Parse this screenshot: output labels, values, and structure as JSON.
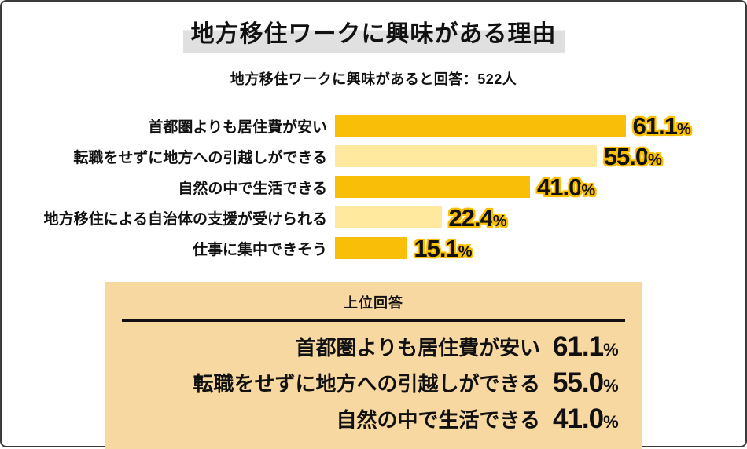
{
  "page": {
    "title": "地方移住ワークに興味がある理由",
    "subtitle": "地方移住ワークに興味があると回答：522人"
  },
  "chart_data": {
    "type": "bar",
    "orientation": "horizontal",
    "title": "地方移住ワークに興味がある理由",
    "subtitle": "地方移住ワークに興味があると回答：522人",
    "respondents": "522人",
    "unit": "%",
    "categories": [
      "首都圏よりも居住費が安い",
      "転職をせずに地方への引越しができる",
      "自然の中で生活できる",
      "地方移住による自治体の支援が受けられる",
      "仕事に集中できそう"
    ],
    "values": [
      61.1,
      55.0,
      41.0,
      22.4,
      15.1
    ],
    "value_labels": [
      "61.1",
      "55.0",
      "41.0",
      "22.4",
      "15.1"
    ],
    "bar_colors": [
      "#f9be07",
      "#ffe99e",
      "#f9be07",
      "#ffe99e",
      "#f9be07"
    ],
    "xlim": [
      0,
      65
    ],
    "grid": false,
    "legend": "none"
  },
  "summary_box": {
    "header": "上位回答",
    "rows": [
      {
        "label": "首都圏よりも居住費が安い",
        "value": "61.1",
        "unit": "%"
      },
      {
        "label": "転職をせずに地方への引越しができる",
        "value": "55.0",
        "unit": "%"
      },
      {
        "label": "自然の中で生活できる",
        "value": "41.0",
        "unit": "%"
      }
    ]
  },
  "colors": {
    "bar_dark": "#f9be07",
    "bar_light": "#ffe99e",
    "value_halo": "#f9be00",
    "summary_box_bg": "#f8d8a1",
    "title_highlight": "#e0e0e0",
    "page_border": "#3b3b3b",
    "text": "#111111"
  }
}
